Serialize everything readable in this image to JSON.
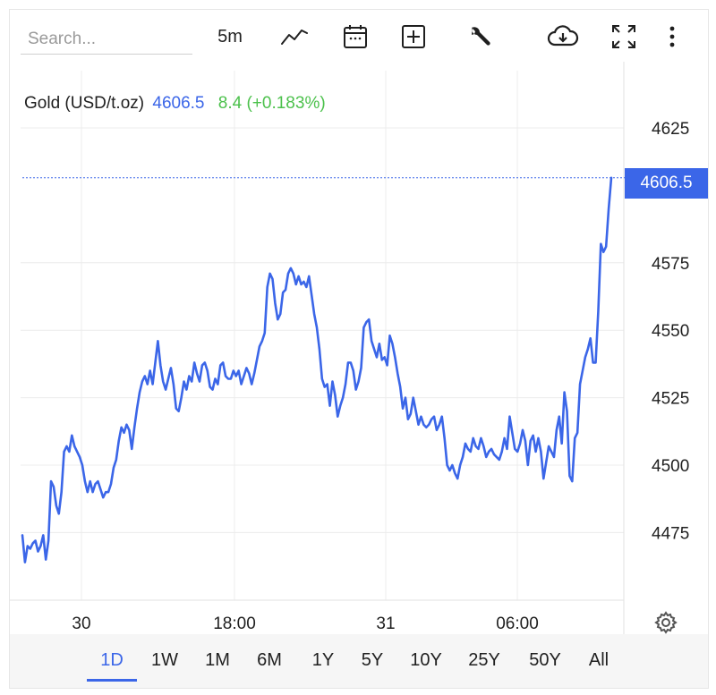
{
  "toolbar": {
    "search_placeholder": "Search...",
    "interval": "5m",
    "icons": [
      "line-chart-icon",
      "calendar-icon",
      "add-plus-icon",
      "wrench-icon",
      "cloud-download-icon",
      "fullscreen-icon",
      "more-vert-icon"
    ]
  },
  "legend": {
    "name": "Gold (USD/t.oz)",
    "last": "4606.5",
    "change": "8.4 (+0.183%)"
  },
  "price_tag": "4606.5",
  "colors": {
    "line": "#3b66e8",
    "positive": "#4cc14c",
    "grid": "#ececec"
  },
  "ranges": [
    "1D",
    "1W",
    "1M",
    "6M",
    "1Y",
    "5Y",
    "10Y",
    "25Y",
    "50Y",
    "All"
  ],
  "active_range": "1D",
  "chart_data": {
    "type": "line",
    "title": "Gold (USD/t.oz)",
    "ylim": [
      4450,
      4640
    ],
    "yticks": [
      4475,
      4500,
      4525,
      4550,
      4575,
      4625
    ],
    "ytick_labels": [
      "4475",
      "4500",
      "4525",
      "4550",
      "4575",
      "4625"
    ],
    "xticks": [
      {
        "label": "30",
        "t": 0.197
      },
      {
        "label": "18:00",
        "t": 0.474
      },
      {
        "label": "31",
        "t": 0.745
      },
      {
        "label": "06:00",
        "t": 1.0
      }
    ],
    "last_value": 4606.5,
    "grid": true,
    "series": [
      {
        "values": [
          4474,
          4464,
          4470,
          4469,
          4471,
          4472,
          4468,
          4470,
          4474,
          4465,
          4472,
          4494,
          4492,
          4485,
          4482,
          4490,
          4505,
          4507,
          4505,
          4511,
          4507,
          4505,
          4503,
          4500,
          4494,
          4490,
          4494,
          4490,
          4493,
          4494,
          4491,
          4488,
          4490,
          4490,
          4493,
          4499,
          4502,
          4509,
          4514,
          4512,
          4515,
          4513,
          4506,
          4514,
          4521,
          4527,
          4531,
          4533,
          4530,
          4535,
          4530,
          4538,
          4546,
          4537,
          4531,
          4528,
          4532,
          4536,
          4530,
          4521,
          4520,
          4525,
          4531,
          4528,
          4533,
          4531,
          4538,
          4534,
          4531,
          4537,
          4538,
          4535,
          4529,
          4528,
          4532,
          4530,
          4537,
          4538,
          4533,
          4532,
          4532,
          4535,
          4533,
          4535,
          4530,
          4533,
          4536,
          4534,
          4530,
          4534,
          4539,
          4544,
          4546,
          4549,
          4566,
          4571,
          4569,
          4560,
          4554,
          4556,
          4564,
          4565,
          4571,
          4573,
          4571,
          4567,
          4570,
          4567,
          4568,
          4566,
          4570,
          4563,
          4556,
          4551,
          4543,
          4532,
          4529,
          4530,
          4522,
          4531,
          4526,
          4518,
          4522,
          4525,
          4530,
          4538,
          4538,
          4535,
          4528,
          4531,
          4536,
          4551,
          4553,
          4554,
          4546,
          4543,
          4540,
          4545,
          4539,
          4540,
          4537,
          4548,
          4545,
          4540,
          4534,
          4529,
          4521,
          4525,
          4517,
          4519,
          4525,
          4520,
          4515,
          4518,
          4515,
          4514,
          4515,
          4517,
          4518,
          4513,
          4515,
          4518,
          4510,
          4500,
          4498,
          4500,
          4497,
          4495,
          4500,
          4503,
          4508,
          4506,
          4505,
          4510,
          4507,
          4506,
          4510,
          4507,
          4503,
          4505,
          4506,
          4504,
          4503,
          4502,
          4505,
          4510,
          4506,
          4518,
          4512,
          4506,
          4505,
          4508,
          4513,
          4509,
          4500,
          4509,
          4511,
          4505,
          4510,
          4505,
          4495,
          4501,
          4507,
          4505,
          4503,
          4513,
          4518,
          4508,
          4527,
          4520,
          4496,
          4494,
          4510,
          4512,
          4530,
          4535,
          4540,
          4543,
          4547,
          4538,
          4538,
          4557,
          4582,
          4579,
          4581,
          4595,
          4606.5
        ]
      }
    ]
  }
}
